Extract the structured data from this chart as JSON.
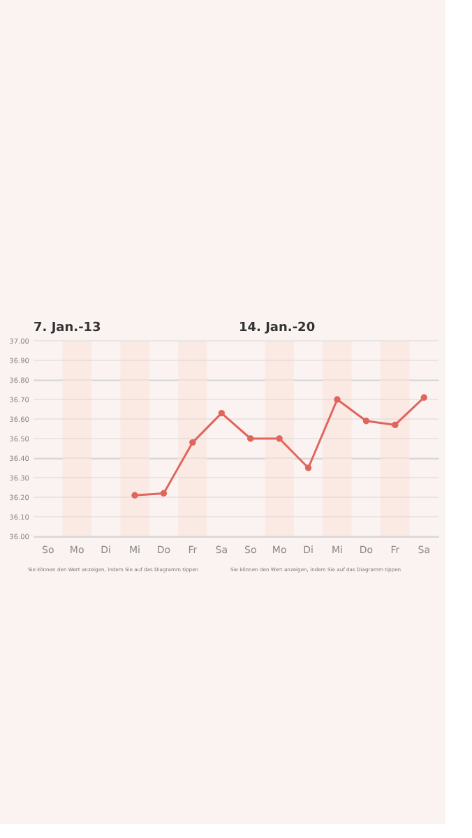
{
  "chart_data": {
    "type": "line",
    "categories": [
      "So",
      "Mo",
      "Di",
      "Mi",
      "Do",
      "Fr",
      "Sa",
      "So",
      "Mo",
      "Di",
      "Mi",
      "Do",
      "Fr",
      "Sa"
    ],
    "series": [
      {
        "color": "#e0655c",
        "values": [
          null,
          null,
          null,
          36.21,
          36.22,
          36.48,
          36.63,
          36.5,
          36.5,
          36.35,
          36.7,
          36.59,
          36.57,
          36.71
        ]
      }
    ],
    "ylim": [
      36.0,
      37.0
    ],
    "yticks": [
      {
        "value": 36.0,
        "label": "36.00"
      },
      {
        "value": 36.1,
        "label": "36.10"
      },
      {
        "value": 36.2,
        "label": "36.20"
      },
      {
        "value": 36.3,
        "label": "36.30"
      },
      {
        "value": 36.4,
        "label": "36.40"
      },
      {
        "value": 36.5,
        "label": "36.50"
      },
      {
        "value": 36.6,
        "label": "36.60"
      },
      {
        "value": 36.7,
        "label": "36.70"
      },
      {
        "value": 36.8,
        "label": "36.80"
      },
      {
        "value": 36.9,
        "label": "36.90"
      },
      {
        "value": 37.0,
        "label": "37.00"
      }
    ],
    "bands": [
      {
        "axis": "x",
        "from": "Mo",
        "to": "Mo",
        "color": "#fbe9e3"
      },
      {
        "axis": "x",
        "from": "Mi",
        "to": "Mi",
        "color": "#fbe9e3"
      },
      {
        "axis": "x",
        "from": "Fr",
        "to": "Fr",
        "color": "#fbe9e3"
      }
    ],
    "annotations": [
      "7. Jan.-13",
      "14. Jan.-20",
      "Sie können den Wert anzeigen, indem Sie auf das Diagramm tippen",
      "Sie können den Wert anzeigen, indem Sie auf das Diagramm tippen"
    ],
    "grid": "y",
    "marker": "circle",
    "line_style": "solid"
  }
}
